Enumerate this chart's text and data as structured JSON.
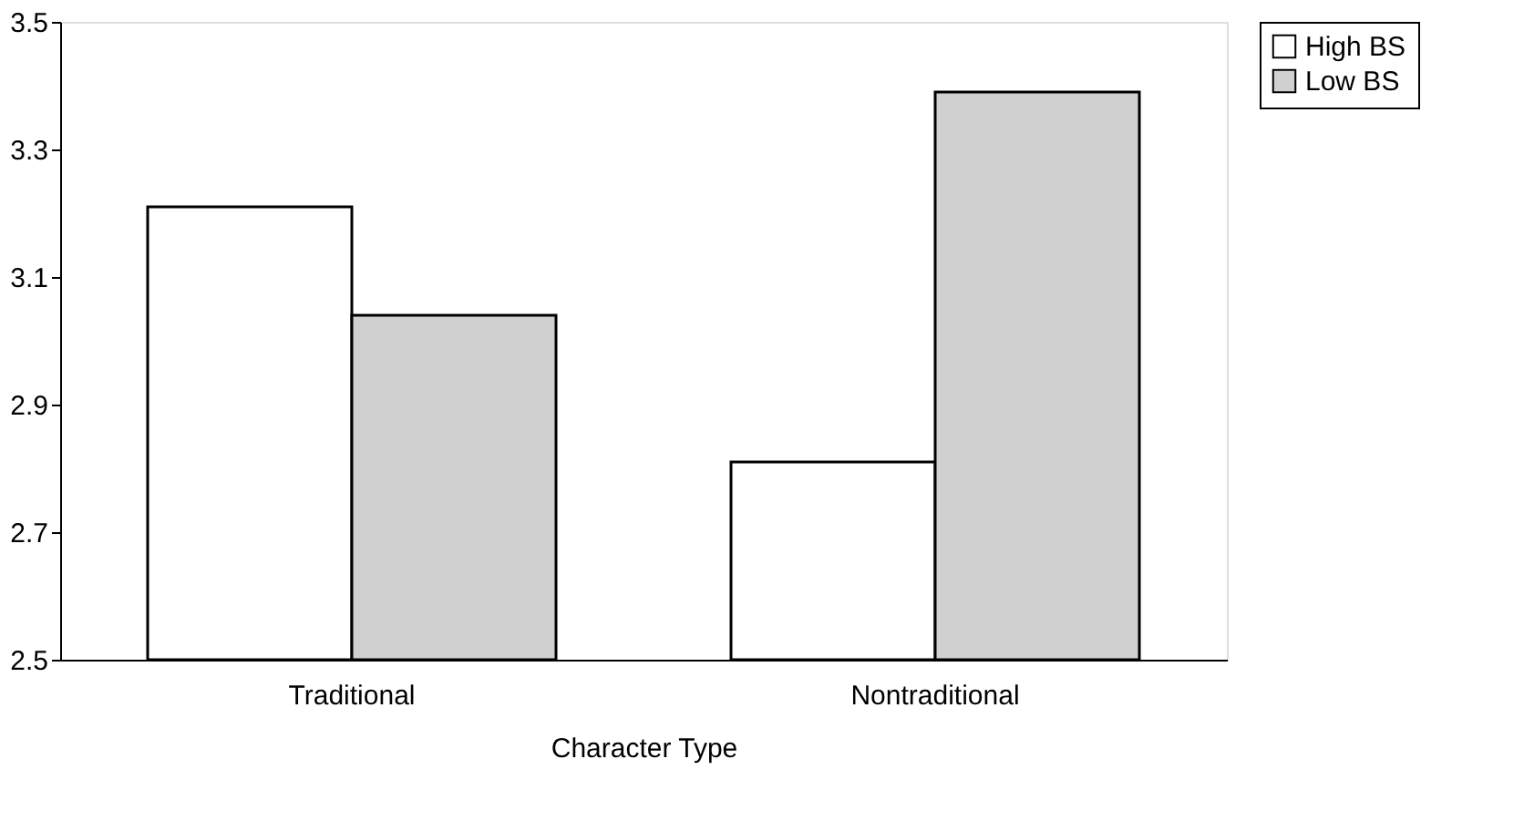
{
  "chart_data": {
    "type": "bar",
    "xlabel": "Character Type",
    "categories": [
      "Traditional",
      "Nontraditional"
    ],
    "series": [
      {
        "name": "High BS",
        "color": "#ffffff",
        "values": [
          3.21,
          2.81
        ]
      },
      {
        "name": "Low BS",
        "color": "#d0d0d0",
        "values": [
          3.04,
          3.39
        ]
      }
    ],
    "ylim": [
      2.5,
      3.5
    ],
    "yticks": [
      2.5,
      2.7,
      2.9,
      3.1,
      3.3,
      3.5
    ],
    "grid": false,
    "legend": "right"
  }
}
